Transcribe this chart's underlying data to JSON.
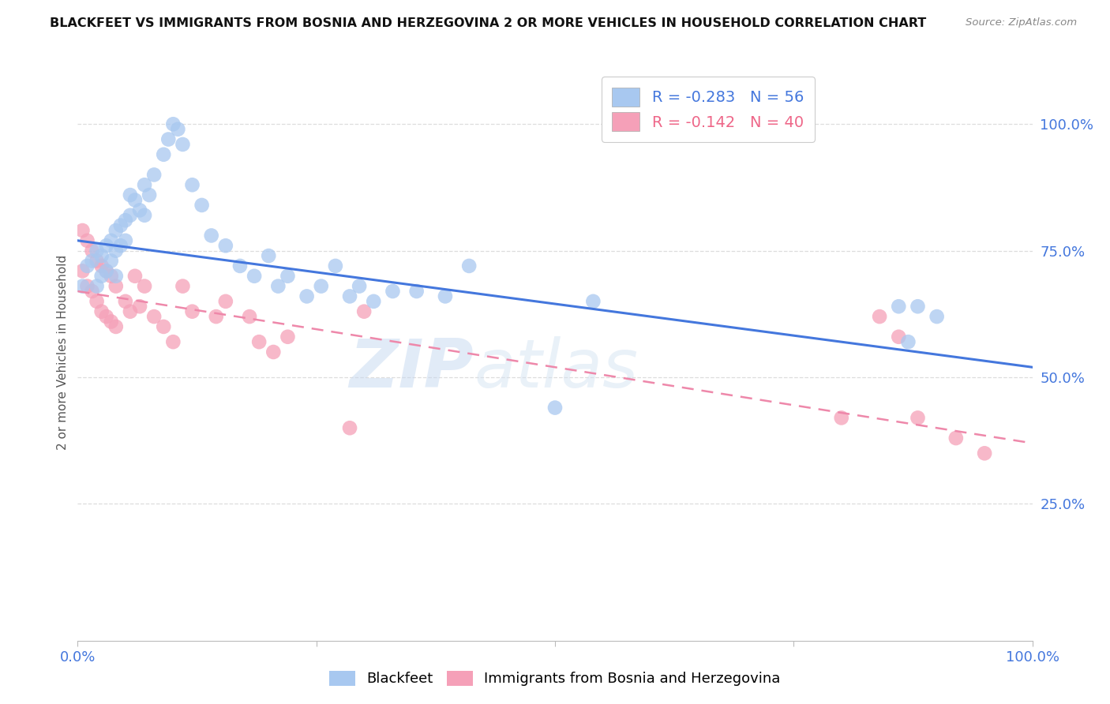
{
  "title": "BLACKFEET VS IMMIGRANTS FROM BOSNIA AND HERZEGOVINA 2 OR MORE VEHICLES IN HOUSEHOLD CORRELATION CHART",
  "source": "Source: ZipAtlas.com",
  "ylabel": "2 or more Vehicles in Household",
  "ytick_labels": [
    "100.0%",
    "75.0%",
    "50.0%",
    "25.0%"
  ],
  "ytick_values": [
    1.0,
    0.75,
    0.5,
    0.25
  ],
  "xlim": [
    0.0,
    1.0
  ],
  "ylim": [
    -0.02,
    1.12
  ],
  "blue_R": -0.283,
  "blue_N": 56,
  "pink_R": -0.142,
  "pink_N": 40,
  "blue_color": "#A8C8F0",
  "pink_color": "#F5A0B8",
  "blue_line_color": "#4477DD",
  "pink_line_color": "#EE88AA",
  "blue_scatter_x": [
    0.005,
    0.01,
    0.015,
    0.02,
    0.02,
    0.025,
    0.025,
    0.03,
    0.03,
    0.035,
    0.035,
    0.04,
    0.04,
    0.04,
    0.045,
    0.045,
    0.05,
    0.05,
    0.055,
    0.055,
    0.06,
    0.065,
    0.07,
    0.07,
    0.075,
    0.08,
    0.09,
    0.095,
    0.1,
    0.105,
    0.11,
    0.12,
    0.13,
    0.14,
    0.155,
    0.17,
    0.185,
    0.2,
    0.21,
    0.22,
    0.24,
    0.255,
    0.27,
    0.285,
    0.295,
    0.31,
    0.33,
    0.355,
    0.385,
    0.41,
    0.5,
    0.54,
    0.86,
    0.87,
    0.88,
    0.9
  ],
  "blue_scatter_y": [
    0.68,
    0.72,
    0.73,
    0.75,
    0.68,
    0.74,
    0.7,
    0.76,
    0.71,
    0.77,
    0.73,
    0.79,
    0.75,
    0.7,
    0.8,
    0.76,
    0.81,
    0.77,
    0.86,
    0.82,
    0.85,
    0.83,
    0.88,
    0.82,
    0.86,
    0.9,
    0.94,
    0.97,
    1.0,
    0.99,
    0.96,
    0.88,
    0.84,
    0.78,
    0.76,
    0.72,
    0.7,
    0.74,
    0.68,
    0.7,
    0.66,
    0.68,
    0.72,
    0.66,
    0.68,
    0.65,
    0.67,
    0.67,
    0.66,
    0.72,
    0.44,
    0.65,
    0.64,
    0.57,
    0.64,
    0.62
  ],
  "pink_scatter_x": [
    0.005,
    0.005,
    0.01,
    0.01,
    0.015,
    0.015,
    0.02,
    0.02,
    0.025,
    0.025,
    0.03,
    0.03,
    0.035,
    0.035,
    0.04,
    0.04,
    0.05,
    0.055,
    0.06,
    0.065,
    0.07,
    0.08,
    0.09,
    0.1,
    0.11,
    0.12,
    0.145,
    0.155,
    0.18,
    0.19,
    0.205,
    0.22,
    0.285,
    0.3,
    0.8,
    0.84,
    0.86,
    0.88,
    0.92,
    0.95
  ],
  "pink_scatter_y": [
    0.79,
    0.71,
    0.77,
    0.68,
    0.75,
    0.67,
    0.73,
    0.65,
    0.72,
    0.63,
    0.71,
    0.62,
    0.7,
    0.61,
    0.68,
    0.6,
    0.65,
    0.63,
    0.7,
    0.64,
    0.68,
    0.62,
    0.6,
    0.57,
    0.68,
    0.63,
    0.62,
    0.65,
    0.62,
    0.57,
    0.55,
    0.58,
    0.4,
    0.63,
    0.42,
    0.62,
    0.58,
    0.42,
    0.38,
    0.35
  ],
  "blue_line_x0": 0.0,
  "blue_line_x1": 1.0,
  "blue_line_y0": 0.77,
  "blue_line_y1": 0.52,
  "pink_line_x0": 0.0,
  "pink_line_x1": 1.0,
  "pink_line_y0": 0.67,
  "pink_line_y1": 0.37,
  "watermark": "ZIPatlas",
  "background_color": "#FFFFFF",
  "grid_color": "#DDDDDD"
}
